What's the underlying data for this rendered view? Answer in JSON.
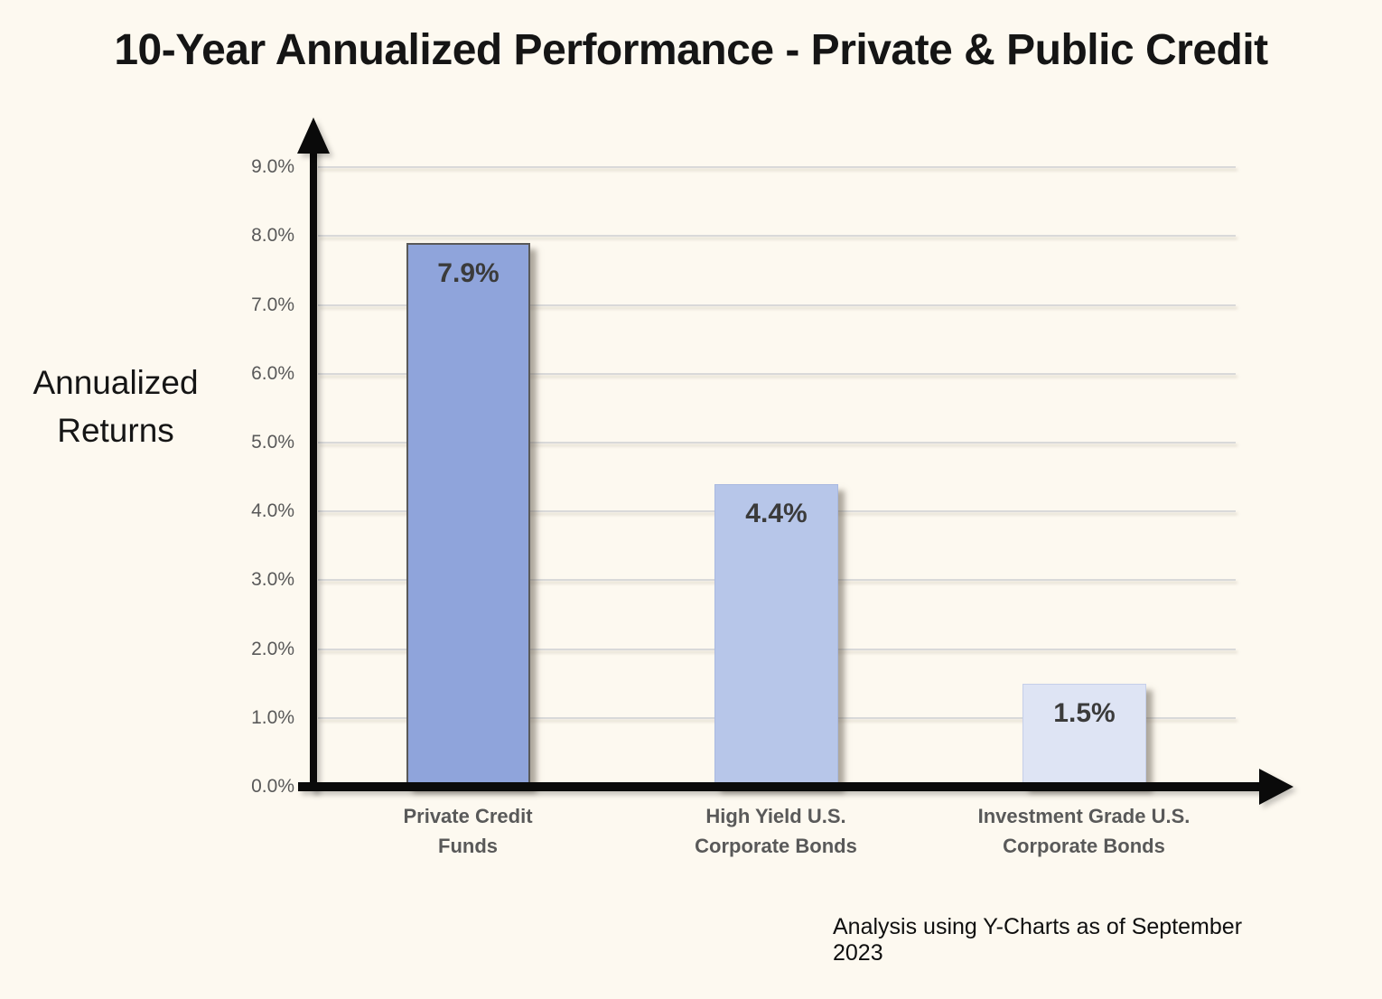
{
  "chart_data": {
    "type": "bar",
    "title": "10-Year Annualized Performance - Private & Public Credit",
    "ylabel": "Annualized\nReturns",
    "xlabel": "",
    "categories": [
      "Private Credit\nFunds",
      "High Yield U.S.\nCorporate Bonds",
      "Investment Grade U.S.\nCorporate Bonds"
    ],
    "values": [
      7.9,
      4.4,
      1.5
    ],
    "value_labels": [
      "7.9%",
      "4.4%",
      "1.5%"
    ],
    "ylim": [
      0,
      9
    ],
    "ytick_labels": [
      "0.0%",
      "1.0%",
      "2.0%",
      "3.0%",
      "4.0%",
      "5.0%",
      "6.0%",
      "7.0%",
      "8.0%",
      "9.0%"
    ],
    "grid": true,
    "legend_position": "none",
    "bar_colors": [
      "#8FA4DB",
      "#B7C6E9",
      "#DEE4F4"
    ],
    "bar_border_colors": [
      "#595959",
      "#A9B9E0",
      "#C5CFE9"
    ],
    "annotation": "Analysis using Y-Charts as of September 2023"
  },
  "colors": {
    "background": "#FDF9F0",
    "gridline": "#D9D9D9",
    "axis": "#0A0A0A",
    "tick_label": "#595959",
    "category_label": "#595959",
    "data_label": "#3B3B3B",
    "title": "#151515",
    "footnote": "#0F0F0F"
  }
}
